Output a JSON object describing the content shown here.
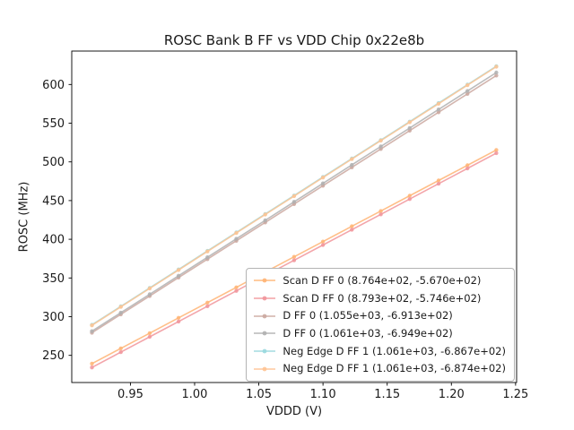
{
  "figure": {
    "background": "#ffffff",
    "axes_edge_color": "#000000",
    "legend_border_color": "#b3b3b3"
  },
  "chart_data": {
    "type": "line",
    "title": "ROSC Bank B FF vs VDD Chip 0x22e8b",
    "xlabel": "VDDD (V)",
    "ylabel": "ROSC (MHz)",
    "xlim": [
      0.9043,
      1.2508
    ],
    "ylim": [
      214.9,
      643.2
    ],
    "xticks": [
      0.95,
      1.0,
      1.05,
      1.1,
      1.15,
      1.2,
      1.25
    ],
    "yticks": [
      250,
      300,
      350,
      400,
      450,
      500,
      550,
      600
    ],
    "grid": false,
    "legend_position": "lower right",
    "x_start": 0.92,
    "x_end": 1.235,
    "n_points": 15,
    "marker": "circle",
    "series": [
      {
        "name": "Scan D FF 0 (8.764e+02, -5.670e+02)",
        "slope": 876.4,
        "intercept": -567.0,
        "color": "#ffb474"
      },
      {
        "name": "Scan D FF 0 (8.793e+02, -5.746e+02)",
        "slope": 879.3,
        "intercept": -574.6,
        "color": "#f1959b"
      },
      {
        "name": "D FF 0 (1.055e+03, -6.913e+02)",
        "slope": 1055.0,
        "intercept": -691.3,
        "color": "#cba8a0"
      },
      {
        "name": "D FF 0 (1.061e+03, -6.949e+02)",
        "slope": 1061.0,
        "intercept": -694.9,
        "color": "#b0b0b0"
      },
      {
        "name": "Neg Edge D FF 1 (1.061e+03, -6.867e+02)",
        "slope": 1061.0,
        "intercept": -686.7,
        "color": "#99d8de"
      },
      {
        "name": "Neg Edge D FF 1 (1.061e+03, -6.874e+02)",
        "slope": 1061.0,
        "intercept": -687.4,
        "color": "#ffc493"
      }
    ]
  }
}
